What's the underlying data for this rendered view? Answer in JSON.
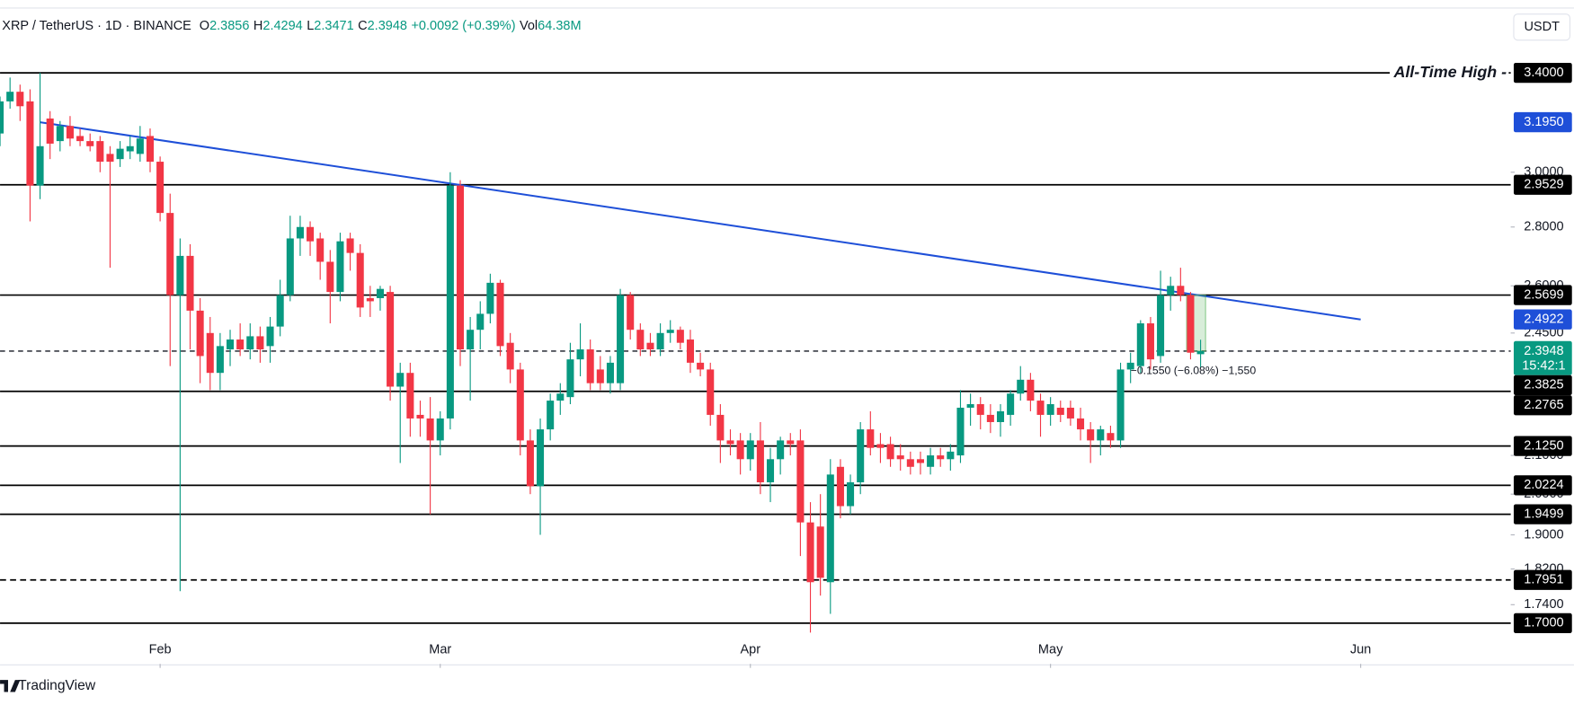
{
  "chart_data": {
    "type": "candlestick",
    "symbol": "XRP / TetherUS · 1D · BINANCE",
    "header_letters": [
      "O",
      "H",
      "L",
      "C"
    ],
    "change": "+0.0092 (+0.39%)",
    "volume_prefix": "Vol",
    "volume": "64.38M",
    "currency": "USDT",
    "brand": "TradingView",
    "up_color": "#089981",
    "down_color": "#f23645",
    "log_scale": true,
    "xlim": [
      0,
      151
    ],
    "xticks": [
      {
        "value": 16,
        "label": "Feb"
      },
      {
        "value": 44,
        "label": "Mar"
      },
      {
        "value": 75,
        "label": "Apr"
      },
      {
        "value": 105,
        "label": "May"
      },
      {
        "value": 136,
        "label": "Jun"
      }
    ],
    "ylim": [
      1.615,
      3.68
    ],
    "yticks": [
      {
        "value": 3,
        "label": "3.0000"
      },
      {
        "value": 2.8,
        "label": "2.8000"
      },
      {
        "value": 2.6,
        "label": "2.6000"
      },
      {
        "value": 2.45,
        "label": "2.4500"
      },
      {
        "value": 2.1,
        "label": "2.1000"
      },
      {
        "value": 2,
        "label": "2.0000"
      },
      {
        "value": 1.9,
        "label": "1.9000"
      },
      {
        "value": 1.82,
        "label": "1.8200"
      },
      {
        "value": 1.74,
        "label": "1.7400"
      }
    ],
    "open": [
      3.15,
      3.28,
      3.32,
      3.28,
      2.95,
      3.21,
      3.12,
      3.18,
      3.14,
      3.12,
      3.12,
      3.07,
      3.05,
      3.08,
      3.07,
      3.14,
      3.04,
      2.85,
      2.57,
      2.7,
      2.52,
      2.45,
      2.33,
      2.4,
      2.43,
      2.4,
      2.44,
      2.41,
      2.47,
      2.57,
      2.76,
      2.8,
      2.76,
      2.68,
      2.58,
      2.76,
      2.71,
      2.56,
      2.56,
      2.58,
      2.29,
      2.33,
      2.21,
      2.2,
      2.14,
      2.2,
      2.95,
      2.4,
      2.46,
      2.51,
      2.61,
      2.42,
      2.34,
      2.14,
      2.02,
      2.17,
      2.25,
      2.26,
      2.37,
      2.4,
      2.34,
      2.3,
      2.3,
      2.57,
      2.46,
      2.42,
      2.4,
      2.45,
      2.46,
      2.43,
      2.36,
      2.34,
      2.21,
      2.14,
      2.14,
      2.09,
      2.14,
      2.03,
      2.09,
      2.14,
      2.14,
      1.93,
      1.92,
      1.79,
      2.07,
      1.97,
      2.03,
      2.17,
      2.13,
      2.13,
      2.1,
      2.09,
      2.09,
      2.07,
      2.1,
      2.09,
      2.1,
      2.23,
      2.24,
      2.21,
      2.19,
      2.21,
      2.27,
      2.31,
      2.25,
      2.21,
      2.23,
      2.23,
      2.2,
      2.17,
      2.14,
      2.16,
      2.14,
      2.34,
      2.35,
      2.48,
      2.38,
      2.57,
      2.6,
      2.57,
      2.3856
    ],
    "high": [
      3.3,
      3.38,
      3.35,
      3.33,
      3.4,
      3.24,
      3.2,
      3.22,
      3.17,
      3.15,
      3.14,
      3.1,
      3.12,
      3.14,
      3.18,
      3.17,
      3.06,
      2.92,
      2.76,
      2.74,
      2.56,
      2.5,
      2.45,
      2.46,
      2.48,
      2.48,
      2.47,
      2.5,
      2.62,
      2.84,
      2.84,
      2.82,
      2.78,
      2.72,
      2.78,
      2.78,
      2.74,
      2.6,
      2.6,
      2.6,
      2.36,
      2.36,
      2.25,
      2.26,
      2.22,
      3.0,
      2.97,
      2.5,
      2.55,
      2.64,
      2.62,
      2.45,
      2.36,
      2.17,
      2.2,
      2.27,
      2.3,
      2.42,
      2.48,
      2.43,
      2.38,
      2.38,
      2.59,
      2.58,
      2.48,
      2.45,
      2.48,
      2.49,
      2.47,
      2.46,
      2.39,
      2.36,
      2.24,
      2.17,
      2.16,
      2.16,
      2.19,
      2.12,
      2.15,
      2.16,
      2.17,
      1.98,
      2.0,
      2.09,
      2.09,
      2.05,
      2.19,
      2.22,
      2.16,
      2.15,
      2.13,
      2.11,
      2.11,
      2.12,
      2.12,
      2.13,
      2.28,
      2.27,
      2.26,
      2.24,
      2.24,
      2.28,
      2.35,
      2.33,
      2.27,
      2.26,
      2.25,
      2.25,
      2.23,
      2.19,
      2.18,
      2.18,
      2.36,
      2.39,
      2.49,
      2.5,
      2.65,
      2.63,
      2.66,
      2.58,
      2.4294
    ],
    "low": [
      3.1,
      3.25,
      3.2,
      2.82,
      2.9,
      3.05,
      3.08,
      3.1,
      3.1,
      3.08,
      3.0,
      2.66,
      3.02,
      3.05,
      3.04,
      3.0,
      2.82,
      2.35,
      1.77,
      2.4,
      2.3,
      2.28,
      2.28,
      2.35,
      2.38,
      2.37,
      2.36,
      2.36,
      2.44,
      2.55,
      2.7,
      2.7,
      2.62,
      2.48,
      2.55,
      2.65,
      2.5,
      2.5,
      2.52,
      2.25,
      2.08,
      2.15,
      2.15,
      1.95,
      2.1,
      2.17,
      2.35,
      2.25,
      2.4,
      2.48,
      2.38,
      2.3,
      2.1,
      2.0,
      1.9,
      2.14,
      2.21,
      2.24,
      2.32,
      2.28,
      2.28,
      2.27,
      2.28,
      2.43,
      2.38,
      2.38,
      2.38,
      2.42,
      2.4,
      2.33,
      2.32,
      2.18,
      2.08,
      2.1,
      2.05,
      2.06,
      2.0,
      1.98,
      2.05,
      2.1,
      1.85,
      1.68,
      1.76,
      1.72,
      1.94,
      1.95,
      2.0,
      2.1,
      2.08,
      2.07,
      2.06,
      2.05,
      2.05,
      2.05,
      2.07,
      2.06,
      2.08,
      2.18,
      2.17,
      2.16,
      2.15,
      2.18,
      2.25,
      2.22,
      2.15,
      2.18,
      2.19,
      2.18,
      2.14,
      2.08,
      2.1,
      2.12,
      2.12,
      2.3,
      2.33,
      2.34,
      2.36,
      2.52,
      2.55,
      2.37,
      2.3471
    ],
    "close": [
      3.28,
      3.32,
      3.26,
      2.95,
      3.1,
      3.11,
      3.18,
      3.13,
      3.12,
      3.1,
      3.04,
      3.04,
      3.09,
      3.1,
      3.13,
      3.04,
      2.85,
      2.57,
      2.7,
      2.52,
      2.38,
      2.33,
      2.41,
      2.43,
      2.4,
      2.44,
      2.4,
      2.47,
      2.57,
      2.76,
      2.8,
      2.75,
      2.68,
      2.58,
      2.75,
      2.71,
      2.53,
      2.55,
      2.59,
      2.29,
      2.33,
      2.2,
      2.2,
      2.14,
      2.2,
      2.95,
      2.4,
      2.46,
      2.51,
      2.61,
      2.41,
      2.34,
      2.14,
      2.02,
      2.17,
      2.25,
      2.27,
      2.37,
      2.4,
      2.3,
      2.3,
      2.36,
      2.57,
      2.46,
      2.4,
      2.4,
      2.45,
      2.46,
      2.42,
      2.36,
      2.34,
      2.21,
      2.14,
      2.13,
      2.09,
      2.14,
      2.03,
      2.09,
      2.14,
      2.13,
      1.93,
      1.79,
      1.8,
      2.05,
      1.97,
      2.03,
      2.17,
      2.12,
      2.12,
      2.09,
      2.09,
      2.07,
      2.08,
      2.1,
      2.09,
      2.11,
      2.23,
      2.24,
      2.21,
      2.19,
      2.22,
      2.27,
      2.31,
      2.25,
      2.21,
      2.24,
      2.21,
      2.2,
      2.17,
      2.14,
      2.17,
      2.14,
      2.34,
      2.36,
      2.48,
      2.37,
      2.57,
      2.6,
      2.57,
      2.39,
      2.3948
    ],
    "levels": [
      {
        "value": 3.4,
        "label": "3.4000",
        "style": "solid"
      },
      {
        "value": 2.9529,
        "label": "2.9529",
        "style": "solid"
      },
      {
        "value": 2.5699,
        "label": "2.5699",
        "style": "solid"
      },
      {
        "value": 2.3825,
        "label": "2.3825",
        "style": "none"
      },
      {
        "value": 2.2765,
        "label": "2.2765",
        "style": "solid"
      },
      {
        "value": 2.125,
        "label": "2.1250",
        "style": "solid"
      },
      {
        "value": 2.0224,
        "label": "2.0224",
        "style": "solid"
      },
      {
        "value": 1.9499,
        "label": "1.9499",
        "style": "solid"
      },
      {
        "value": 1.7951,
        "label": "1.7951",
        "style": "dashed"
      },
      {
        "value": 1.7,
        "label": "1.7000",
        "style": "solid"
      }
    ],
    "level_color": "#000000",
    "ath_text": "All-Time High -",
    "trendline": {
      "x": [
        4,
        136
      ],
      "values": [
        3.195,
        2.4922
      ],
      "value_labels": [
        "3.1950",
        "2.4922"
      ],
      "color": "#1e4fd8"
    },
    "current_price": {
      "value": 2.3948,
      "label": "2.3948",
      "countdown": "15:42:1",
      "color": "#089981"
    },
    "measure_text": "−0.1550 (−6.08%) −1,550"
  }
}
